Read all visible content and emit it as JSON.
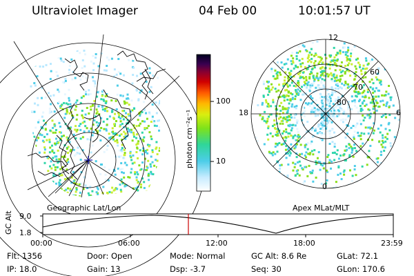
{
  "header": {
    "instrument": "Ultraviolet Imager",
    "date": "04 Feb 00",
    "time": "10:01:57 UT"
  },
  "colorbar": {
    "unit_label": "photon cm⁻²s⁻¹",
    "ticks": [
      "100",
      "10"
    ],
    "scale": "log"
  },
  "panels": {
    "left": {
      "label": "Geographic Lat/Lon"
    },
    "right": {
      "label": "Apex MLat/MLT",
      "mlt_labels": [
        "12",
        "18",
        "6",
        "0"
      ],
      "mlat_labels": [
        "60",
        "70",
        "80"
      ]
    }
  },
  "altitude_plot": {
    "ylabel": "GC Alt",
    "yticks": [
      "9.0",
      "1.8"
    ],
    "xticks": [
      "00:00",
      "06:00",
      "12:00",
      "18:00",
      "23:59"
    ]
  },
  "status": {
    "row1": [
      {
        "k": "Flt:",
        "v": "1356"
      },
      {
        "k": "Door:",
        "v": "Open"
      },
      {
        "k": "Mode:",
        "v": "Normal"
      },
      {
        "k": "GC Alt:",
        "v": "8.6 Re"
      },
      {
        "k": "GLat:",
        "v": "72.1"
      }
    ],
    "row2": [
      {
        "k": "IP:",
        "v": "18.0"
      },
      {
        "k": "Gain:",
        "v": "13"
      },
      {
        "k": "Dsp:",
        "v": "-3.7"
      },
      {
        "k": "Seq:",
        "v": "30"
      },
      {
        "k": "GLon:",
        "v": "170.6"
      }
    ]
  },
  "colors": {
    "marker": "#cc0000",
    "emission_low": "#d8f0ff",
    "emission_mid": "#2fd6a8",
    "emission_high": "#8adf1a"
  }
}
